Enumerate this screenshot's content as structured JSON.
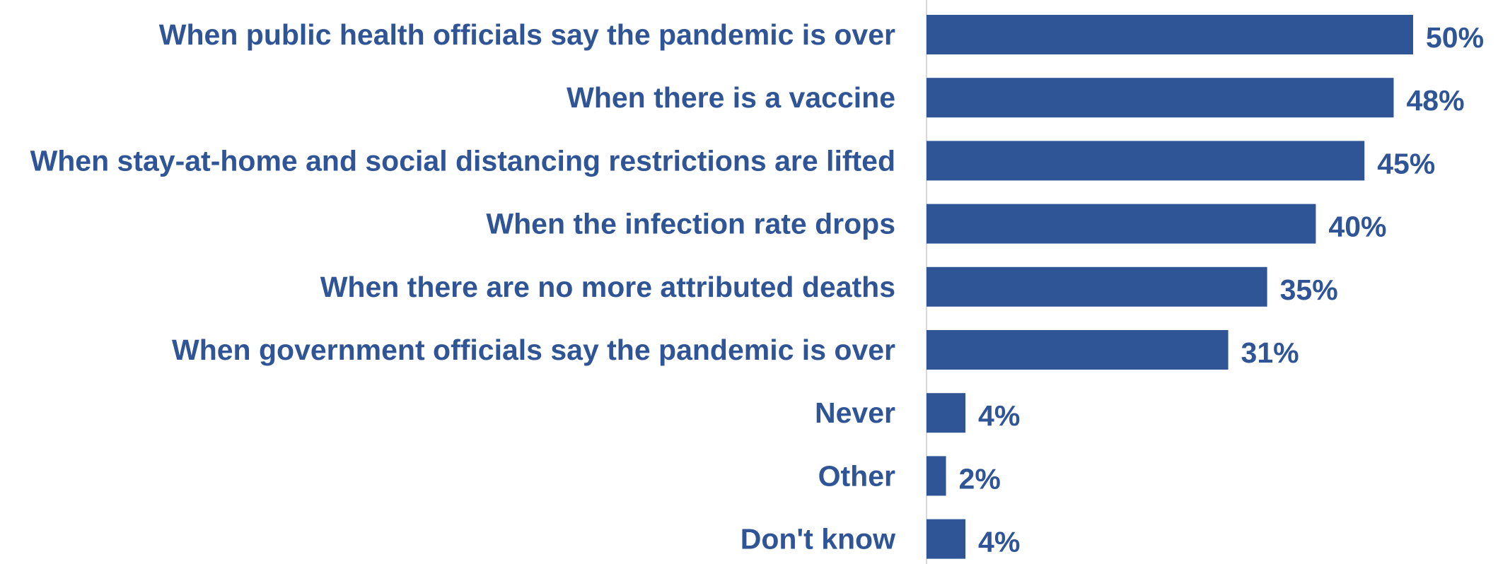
{
  "chart_data": {
    "type": "bar",
    "orientation": "horizontal",
    "categories": [
      "When public health officials say the pandemic is over",
      "When there is a vaccine",
      "When stay-at-home and social distancing restrictions are lifted",
      "When the infection rate drops",
      "When there are no more attributed deaths",
      "When government officials say the pandemic is over",
      "Never",
      "Other",
      "Don't know"
    ],
    "values": [
      50,
      48,
      45,
      40,
      35,
      31,
      4,
      2,
      4
    ],
    "value_labels": [
      "50%",
      "48%",
      "45%",
      "40%",
      "35%",
      "31%",
      "4%",
      "2%",
      "4%"
    ],
    "unit": "%",
    "title": "",
    "xlabel": "",
    "ylabel": "",
    "xlim": [
      0,
      55
    ],
    "grid": false,
    "legend": "none",
    "bar_color": "#2F5597",
    "label_color": "#2F5597",
    "axis_line_color": "#D9D9D9"
  }
}
